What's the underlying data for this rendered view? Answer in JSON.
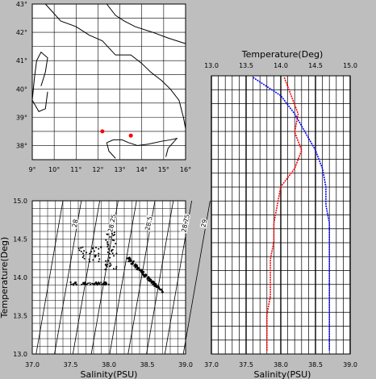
{
  "chart_data": [
    {
      "type": "map",
      "x_ticks": [
        "9°",
        "10°",
        "11°",
        "12°",
        "13°",
        "14°",
        "15°",
        "16°"
      ],
      "y_ticks": [
        "38°",
        "39°",
        "40°",
        "41°",
        "42°",
        "43°"
      ],
      "xlim": [
        9,
        16
      ],
      "ylim": [
        37.5,
        43
      ],
      "stations": [
        {
          "lon": 12.2,
          "lat": 38.5
        },
        {
          "lon": 13.5,
          "lat": 38.35
        }
      ],
      "colors": {
        "station": "#ff0000",
        "coast": "#000000"
      }
    },
    {
      "type": "scatter",
      "xlabel": "Salinity(PSU)",
      "ylabel": "Temperature(Deg)",
      "xlim": [
        37.0,
        39.0
      ],
      "ylim": [
        13.0,
        15.0
      ],
      "x_ticks": [
        "37.0",
        "37.5",
        "38.0",
        "38.5",
        "39.0"
      ],
      "y_ticks": [
        "13.0",
        "13.5",
        "14.0",
        "14.5",
        "15.0"
      ],
      "density_labels": [
        "28",
        "28.25",
        "28.5",
        "28.75",
        "29"
      ],
      "point_color": "#000000"
    },
    {
      "type": "line",
      "title": "Temperature(Deg)",
      "xlabel": "Salinity(PSU)",
      "top_ticks": [
        "13.0",
        "13.5",
        "14.0",
        "14.5",
        "15.0"
      ],
      "bottom_ticks": [
        "37.0",
        "37.5",
        "38.0",
        "38.5",
        "39.0"
      ],
      "temperature_range": [
        13.0,
        15.0
      ],
      "salinity_range": [
        37.0,
        39.0
      ],
      "series": [
        {
          "color": "#ff0000",
          "values": [
            14.05,
            14.15,
            14.25,
            14.2,
            14.3,
            14.2,
            14.0,
            13.95,
            13.9,
            13.9,
            13.85,
            13.85,
            13.85,
            13.8,
            13.8,
            13.8
          ]
        },
        {
          "color": "#0000ff",
          "values": [
            37.6,
            38.0,
            38.2,
            38.35,
            38.5,
            38.6,
            38.65,
            38.65,
            38.7,
            38.7,
            38.7,
            38.7,
            38.7,
            38.7,
            38.7,
            38.7
          ]
        }
      ]
    }
  ]
}
